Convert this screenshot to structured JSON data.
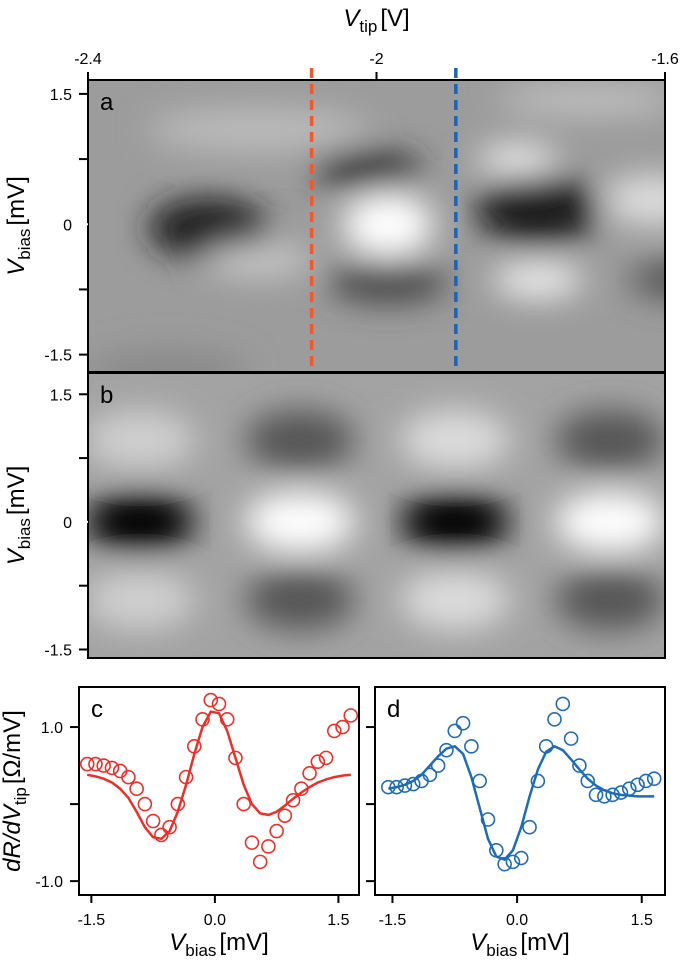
{
  "chart_data": [
    {
      "type": "heatmap",
      "label": "a",
      "xlabel": {
        "v": "V",
        "sub": "tip",
        "unit": "[V]"
      },
      "xlim": [
        -2.4,
        -1.6
      ],
      "xticks": [
        -2.4,
        -2.0,
        -1.6
      ],
      "ylabel": {
        "v": "V",
        "sub": "bias",
        "unit": "[mV]"
      },
      "ylim": [
        -1.7,
        1.66
      ],
      "yticks": [
        1.5,
        0,
        -1.5
      ],
      "yminor": [
        0.75,
        -0.75
      ],
      "vlines": [
        {
          "value": -2.09,
          "color": "#f05a28"
        },
        {
          "value": -1.89,
          "color": "#1e64b4"
        }
      ]
    },
    {
      "type": "heatmap",
      "label": "b",
      "ylabel": {
        "v": "V",
        "sub": "bias",
        "unit": "[mV]"
      },
      "ylim": [
        -1.6,
        1.75
      ],
      "yticks": [
        1.5,
        0,
        -1.5
      ],
      "yminor": [
        0.75,
        -0.75
      ]
    },
    {
      "type": "scatter",
      "label": "c",
      "color": "#e8312a",
      "xlabel": {
        "v": "V",
        "sub": "bias",
        "unit": "[mV]"
      },
      "ylabel": {
        "pre": "dR/dV",
        "sub": "tip",
        "unit": "[Ω/mV]"
      },
      "xlim": [
        -1.65,
        1.75
      ],
      "xticks": [
        -1.5,
        {
          "value": 0,
          "label": "0.0"
        },
        1.5
      ],
      "ylim": [
        -1.18,
        1.52
      ],
      "yticks": [
        {
          "value": 1,
          "label": "1.0"
        },
        {
          "value": -1,
          "label": "-1.0"
        }
      ],
      "yminor": [
        0
      ],
      "x": [
        -1.55,
        -1.45,
        -1.35,
        -1.25,
        -1.15,
        -1.05,
        -0.95,
        -0.85,
        -0.75,
        -0.65,
        -0.55,
        -0.45,
        -0.35,
        -0.25,
        -0.15,
        -0.05,
        0.05,
        0.15,
        0.25,
        0.35,
        0.45,
        0.55,
        0.65,
        0.75,
        0.85,
        0.95,
        1.05,
        1.15,
        1.25,
        1.35,
        1.45,
        1.55,
        1.65
      ],
      "points": [
        0.52,
        0.52,
        0.5,
        0.47,
        0.43,
        0.35,
        0.2,
        0.0,
        -0.22,
        -0.4,
        -0.3,
        0.0,
        0.35,
        0.75,
        1.1,
        1.35,
        1.3,
        1.1,
        0.6,
        0.0,
        -0.5,
        -0.75,
        -0.55,
        -0.35,
        -0.15,
        0.05,
        0.2,
        0.4,
        0.55,
        0.6,
        0.95,
        1.0,
        1.15
      ],
      "fit": [
        0.38,
        0.36,
        0.33,
        0.28,
        0.2,
        0.08,
        -0.1,
        -0.3,
        -0.43,
        -0.45,
        -0.35,
        -0.1,
        0.25,
        0.65,
        1.0,
        1.2,
        1.18,
        0.95,
        0.6,
        0.25,
        0.0,
        -0.12,
        -0.14,
        -0.1,
        -0.02,
        0.07,
        0.15,
        0.22,
        0.28,
        0.32,
        0.35,
        0.37,
        0.38
      ]
    },
    {
      "type": "scatter",
      "label": "d",
      "color": "#1f6bb5",
      "xlabel": {
        "v": "V",
        "sub": "bias",
        "unit": "[mV]"
      },
      "xlim": [
        -1.71,
        1.78
      ],
      "xticks": [
        -1.5,
        {
          "value": 0,
          "label": "0.0"
        },
        1.5
      ],
      "ylim": [
        -1.18,
        1.52
      ],
      "yminor": [
        1,
        0,
        -1
      ],
      "x": [
        -1.55,
        -1.45,
        -1.35,
        -1.25,
        -1.15,
        -1.05,
        -0.95,
        -0.85,
        -0.75,
        -0.65,
        -0.55,
        -0.45,
        -0.35,
        -0.25,
        -0.15,
        -0.05,
        0.05,
        0.15,
        0.25,
        0.35,
        0.45,
        0.55,
        0.65,
        0.75,
        0.85,
        0.95,
        1.05,
        1.15,
        1.25,
        1.35,
        1.45,
        1.55,
        1.65
      ],
      "points": [
        0.22,
        0.22,
        0.24,
        0.26,
        0.3,
        0.38,
        0.5,
        0.7,
        0.95,
        1.05,
        0.75,
        0.3,
        -0.2,
        -0.6,
        -0.78,
        -0.75,
        -0.7,
        -0.3,
        0.3,
        0.75,
        1.1,
        1.3,
        0.85,
        0.5,
        0.3,
        0.12,
        0.1,
        0.12,
        0.15,
        0.2,
        0.25,
        0.3,
        0.33
      ],
      "fit": [
        0.2,
        0.22,
        0.25,
        0.3,
        0.38,
        0.5,
        0.62,
        0.72,
        0.75,
        0.65,
        0.35,
        -0.05,
        -0.45,
        -0.68,
        -0.72,
        -0.6,
        -0.3,
        0.1,
        0.45,
        0.68,
        0.75,
        0.7,
        0.58,
        0.45,
        0.33,
        0.24,
        0.18,
        0.14,
        0.12,
        0.11,
        0.1,
        0.1,
        0.1
      ]
    }
  ]
}
